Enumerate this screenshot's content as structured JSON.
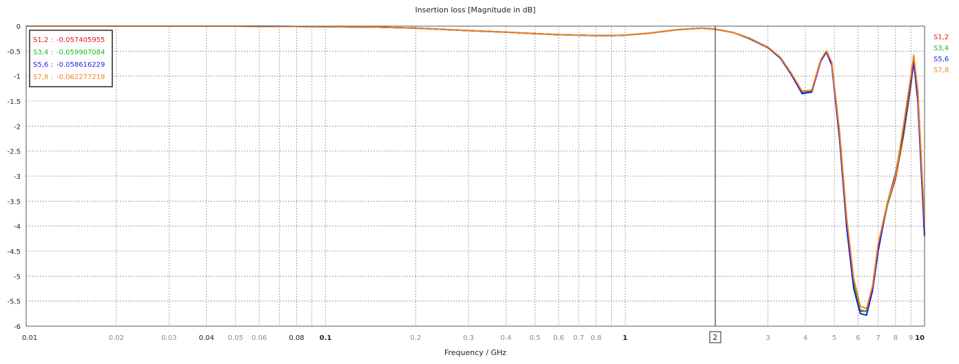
{
  "chart_data": {
    "type": "line",
    "title": "Insertion loss [Magnitude in dB]",
    "xlabel": "Frequency / GHz",
    "ylabel": "",
    "xscale": "log",
    "xlim": [
      0.01,
      10
    ],
    "ylim": [
      -6,
      0
    ],
    "grid": true,
    "legend_position": "right",
    "x_ticks": [
      {
        "value": 0.01,
        "label": "0.01",
        "style": "normal"
      },
      {
        "value": 0.02,
        "label": "0.02",
        "style": "minor"
      },
      {
        "value": 0.03,
        "label": "0.03",
        "style": "minor"
      },
      {
        "value": 0.04,
        "label": "0.04",
        "style": "normal"
      },
      {
        "value": 0.05,
        "label": "0.05",
        "style": "minor"
      },
      {
        "value": 0.06,
        "label": "0.06",
        "style": "minor"
      },
      {
        "value": 0.07,
        "label": "",
        "style": "minor"
      },
      {
        "value": 0.08,
        "label": "0.08",
        "style": "normal"
      },
      {
        "value": 0.09,
        "label": "",
        "style": "minor"
      },
      {
        "value": 0.1,
        "label": "0.1",
        "style": "major"
      },
      {
        "value": 0.2,
        "label": "0.2",
        "style": "minor"
      },
      {
        "value": 0.3,
        "label": "0.3",
        "style": "minor"
      },
      {
        "value": 0.4,
        "label": "0.4",
        "style": "minor"
      },
      {
        "value": 0.5,
        "label": "0.5",
        "style": "minor"
      },
      {
        "value": 0.6,
        "label": "0.6",
        "style": "minor"
      },
      {
        "value": 0.7,
        "label": "0.7",
        "style": "minor"
      },
      {
        "value": 0.8,
        "label": "0.8",
        "style": "minor"
      },
      {
        "value": 0.9,
        "label": "",
        "style": "minor"
      },
      {
        "value": 1,
        "label": "1",
        "style": "major"
      },
      {
        "value": 2,
        "label": "2",
        "style": "boxed"
      },
      {
        "value": 3,
        "label": "3",
        "style": "minor"
      },
      {
        "value": 4,
        "label": "4",
        "style": "minor"
      },
      {
        "value": 5,
        "label": "5",
        "style": "minor"
      },
      {
        "value": 6,
        "label": "6",
        "style": "minor"
      },
      {
        "value": 7,
        "label": "7",
        "style": "minor"
      },
      {
        "value": 8,
        "label": "8",
        "style": "minor"
      },
      {
        "value": 9,
        "label": "9",
        "style": "minor"
      },
      {
        "value": 10,
        "label": "10",
        "style": "major"
      }
    ],
    "y_ticks": [
      {
        "value": 0,
        "label": "0"
      },
      {
        "value": -0.5,
        "label": "-0.5"
      },
      {
        "value": -1,
        "label": "-1"
      },
      {
        "value": -1.5,
        "label": "-1.5"
      },
      {
        "value": -2,
        "label": "-2"
      },
      {
        "value": -2.5,
        "label": "-2.5"
      },
      {
        "value": -3,
        "label": "-3"
      },
      {
        "value": -3.5,
        "label": "-3.5"
      },
      {
        "value": -4,
        "label": "-4"
      },
      {
        "value": -4.5,
        "label": "-4.5"
      },
      {
        "value": -5,
        "label": "-5"
      },
      {
        "value": -5.5,
        "label": "-5.5"
      },
      {
        "value": -6,
        "label": "-6"
      }
    ],
    "marker": {
      "x": 2,
      "label": "2"
    },
    "marker_readout": [
      {
        "label": "S1,2 :",
        "value": "-0.057405955",
        "color": "#e8141e"
      },
      {
        "label": "S3,4 :",
        "value": "-0.059907084",
        "color": "#1eb41e"
      },
      {
        "label": "S5,6 :",
        "value": "-0.058616229",
        "color": "#1e1edc"
      },
      {
        "label": "S7,8 :",
        "value": "-0.062277219",
        "color": "#f0821e"
      }
    ],
    "series": [
      {
        "name": "S1,2",
        "color": "#e8141e",
        "x": [
          0.01,
          0.02,
          0.05,
          0.1,
          0.15,
          0.2,
          0.3,
          0.4,
          0.5,
          0.6,
          0.7,
          0.8,
          0.9,
          1,
          1.2,
          1.5,
          1.8,
          2,
          2.3,
          2.6,
          3,
          3.3,
          3.6,
          3.9,
          4.2,
          4.5,
          4.7,
          4.9,
          5.2,
          5.5,
          5.8,
          6.1,
          6.4,
          6.7,
          7,
          7.5,
          8,
          8.5,
          9,
          9.2,
          9.5,
          10
        ],
        "y": [
          0,
          0,
          0,
          -0.01,
          -0.02,
          -0.04,
          -0.09,
          -0.12,
          -0.15,
          -0.17,
          -0.18,
          -0.19,
          -0.19,
          -0.18,
          -0.14,
          -0.07,
          -0.04,
          -0.06,
          -0.13,
          -0.24,
          -0.42,
          -0.63,
          -0.96,
          -1.32,
          -1.3,
          -0.68,
          -0.5,
          -0.75,
          -2.2,
          -4.0,
          -5.2,
          -5.7,
          -5.7,
          -5.25,
          -4.4,
          -3.6,
          -3.05,
          -2.2,
          -1.2,
          -0.7,
          -1.5,
          -4.2
        ]
      },
      {
        "name": "S3,4",
        "color": "#1eb41e",
        "x": [
          0.01,
          0.02,
          0.05,
          0.1,
          0.15,
          0.2,
          0.3,
          0.4,
          0.5,
          0.6,
          0.7,
          0.8,
          0.9,
          1,
          1.2,
          1.5,
          1.8,
          2,
          2.3,
          2.6,
          3,
          3.3,
          3.6,
          3.9,
          4.2,
          4.5,
          4.7,
          4.9,
          5.2,
          5.5,
          5.8,
          6.1,
          6.4,
          6.7,
          7,
          7.5,
          8,
          8.5,
          9,
          9.2,
          9.5,
          10
        ],
        "y": [
          0,
          0,
          0,
          -0.01,
          -0.02,
          -0.04,
          -0.09,
          -0.12,
          -0.15,
          -0.17,
          -0.18,
          -0.19,
          -0.19,
          -0.18,
          -0.14,
          -0.07,
          -0.04,
          -0.06,
          -0.13,
          -0.24,
          -0.43,
          -0.64,
          -0.97,
          -1.33,
          -1.31,
          -0.69,
          -0.5,
          -0.74,
          -2.18,
          -3.95,
          -5.15,
          -5.68,
          -5.7,
          -5.25,
          -4.45,
          -3.6,
          -3.0,
          -2.15,
          -1.15,
          -0.68,
          -1.45,
          -4.1
        ]
      },
      {
        "name": "S5,6",
        "color": "#1e1edc",
        "x": [
          0.01,
          0.02,
          0.05,
          0.1,
          0.15,
          0.2,
          0.3,
          0.4,
          0.5,
          0.6,
          0.7,
          0.8,
          0.9,
          1,
          1.2,
          1.5,
          1.8,
          2,
          2.3,
          2.6,
          3,
          3.3,
          3.6,
          3.9,
          4.2,
          4.5,
          4.7,
          4.9,
          5.2,
          5.5,
          5.8,
          6.1,
          6.4,
          6.7,
          7,
          7.5,
          8,
          8.5,
          9,
          9.2,
          9.5,
          10
        ],
        "y": [
          0,
          0,
          0,
          -0.01,
          -0.02,
          -0.04,
          -0.09,
          -0.12,
          -0.15,
          -0.17,
          -0.18,
          -0.19,
          -0.19,
          -0.18,
          -0.14,
          -0.07,
          -0.04,
          -0.06,
          -0.13,
          -0.25,
          -0.43,
          -0.64,
          -0.98,
          -1.35,
          -1.32,
          -0.7,
          -0.52,
          -0.78,
          -2.25,
          -4.05,
          -5.25,
          -5.75,
          -5.78,
          -5.3,
          -4.5,
          -3.55,
          -2.95,
          -2.1,
          -1.1,
          -0.72,
          -1.5,
          -4.2
        ]
      },
      {
        "name": "S7,8",
        "color": "#f0821e",
        "x": [
          0.01,
          0.02,
          0.05,
          0.1,
          0.15,
          0.2,
          0.3,
          0.4,
          0.5,
          0.6,
          0.7,
          0.8,
          0.9,
          1,
          1.2,
          1.5,
          1.8,
          2,
          2.3,
          2.6,
          3,
          3.3,
          3.6,
          3.9,
          4.2,
          4.5,
          4.7,
          4.9,
          5.2,
          5.5,
          5.8,
          6.1,
          6.4,
          6.7,
          7,
          7.5,
          8,
          8.5,
          9,
          9.2,
          9.5,
          10
        ],
        "y": [
          0,
          0,
          0,
          -0.01,
          -0.02,
          -0.04,
          -0.09,
          -0.12,
          -0.15,
          -0.17,
          -0.18,
          -0.19,
          -0.19,
          -0.18,
          -0.14,
          -0.07,
          -0.04,
          -0.06,
          -0.13,
          -0.24,
          -0.42,
          -0.62,
          -0.95,
          -1.3,
          -1.28,
          -0.67,
          -0.49,
          -0.72,
          -2.1,
          -3.85,
          -5.05,
          -5.6,
          -5.65,
          -5.2,
          -4.35,
          -3.55,
          -3.0,
          -2.0,
          -1.0,
          -0.58,
          -1.3,
          -3.9
        ]
      }
    ]
  }
}
